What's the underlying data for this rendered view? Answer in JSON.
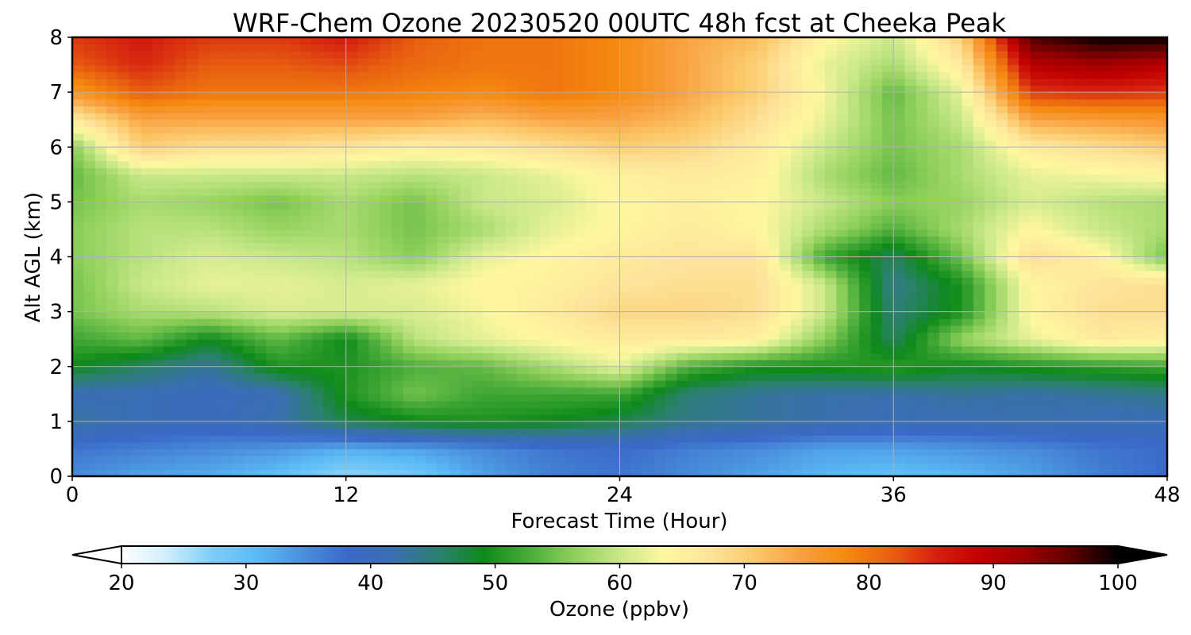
{
  "chart_data": {
    "type": "heatmap",
    "title": "WRF-Chem Ozone  20230520 00UTC 48h fcst at Cheeka Peak",
    "xlabel": "Forecast Time (Hour)",
    "ylabel": "Alt AGL (km)",
    "xlim": [
      0,
      48
    ],
    "ylim": [
      0,
      8
    ],
    "x_ticks": [
      "0",
      "12",
      "24",
      "36",
      "48"
    ],
    "y_ticks": [
      "0",
      "1",
      "2",
      "3",
      "4",
      "5",
      "6",
      "7",
      "8"
    ],
    "grid": true,
    "x_hours": [
      0,
      3,
      6,
      9,
      12,
      15,
      18,
      21,
      24,
      27,
      30,
      33,
      36,
      39,
      42,
      45,
      48
    ],
    "z_km": [
      0,
      0.5,
      1,
      1.5,
      2,
      2.5,
      3,
      3.5,
      4,
      4.5,
      5,
      5.5,
      6,
      6.5,
      7,
      7.5,
      8
    ],
    "ozone_ppbv": [
      [
        35,
        33,
        32,
        30,
        26,
        28,
        33,
        36,
        37,
        35,
        33,
        31,
        30,
        31,
        33,
        36,
        38
      ],
      [
        37,
        36,
        35,
        34,
        32,
        33,
        35,
        37,
        38,
        36,
        35,
        33,
        33,
        34,
        35,
        37,
        38
      ],
      [
        43,
        41,
        40,
        42,
        47,
        49,
        50,
        49,
        47,
        44,
        43,
        42,
        41,
        41,
        42,
        41,
        41
      ],
      [
        41,
        41,
        40,
        41,
        50,
        55,
        52,
        52,
        52,
        45,
        43,
        42,
        42,
        43,
        42,
        43,
        44
      ],
      [
        49,
        46,
        43,
        50,
        50,
        53,
        54,
        58,
        62,
        53,
        50,
        50,
        51,
        49,
        50,
        51,
        52
      ],
      [
        52,
        54,
        49,
        54,
        49,
        59,
        62,
        64,
        66,
        66,
        65,
        56,
        46,
        57,
        62,
        66,
        65
      ],
      [
        55,
        58,
        59,
        61,
        61,
        61,
        63,
        66,
        69,
        69,
        68,
        60,
        45,
        50,
        64,
        68,
        68
      ],
      [
        55,
        60,
        62,
        62,
        61,
        62,
        64,
        65,
        67,
        68,
        68,
        60,
        44,
        50,
        64,
        67,
        68
      ],
      [
        56,
        59,
        61,
        60,
        59,
        56,
        62,
        64,
        66,
        67,
        67,
        52,
        46,
        55,
        68,
        65,
        55
      ],
      [
        56,
        59,
        59,
        57,
        58,
        55,
        58,
        62,
        64,
        66,
        64,
        58,
        53,
        58,
        64,
        60,
        58
      ],
      [
        55,
        58,
        57,
        55,
        58,
        55,
        60,
        61,
        64,
        65,
        64,
        60,
        56,
        57,
        61,
        59,
        58
      ],
      [
        54,
        60,
        60,
        60,
        60,
        59,
        60,
        62,
        65,
        66,
        65,
        58,
        54,
        58,
        62,
        63,
        64
      ],
      [
        56,
        70,
        68,
        68,
        67,
        65,
        66,
        68,
        70,
        69,
        66,
        60,
        55,
        58,
        66,
        68,
        70
      ],
      [
        66,
        74,
        74,
        74,
        74,
        74,
        72,
        74,
        74,
        72,
        68,
        62,
        55,
        60,
        74,
        75,
        76
      ],
      [
        76,
        82,
        80,
        80,
        80,
        79,
        78,
        80,
        78,
        74,
        70,
        63,
        54,
        62,
        84,
        85,
        84
      ],
      [
        82,
        85,
        82,
        82,
        83,
        81,
        80,
        80,
        78,
        74,
        70,
        62,
        58,
        66,
        90,
        92,
        90
      ],
      [
        84,
        86,
        84,
        84,
        86,
        82,
        80,
        80,
        78,
        74,
        72,
        64,
        60,
        70,
        97,
        100,
        100
      ]
    ],
    "colorbar": {
      "label": "Ozone  (ppbv)",
      "range": [
        20,
        100
      ],
      "ticks": [
        "20",
        "30",
        "40",
        "50",
        "60",
        "70",
        "80",
        "90",
        "100"
      ],
      "extend": "both",
      "colors": [
        "#ffffff",
        "#cfeefc",
        "#7ecdf8",
        "#5bbaf5",
        "#4a90dc",
        "#3a69c8",
        "#3a6fb0",
        "#2c8070",
        "#0e8a1a",
        "#4aac3a",
        "#8fd05a",
        "#c9e88a",
        "#fff7a0",
        "#fde39a",
        "#fbc86a",
        "#f8a040",
        "#f58a10",
        "#e86010",
        "#d42010",
        "#c00000",
        "#9a0000",
        "#5c0000",
        "#000000"
      ]
    }
  }
}
